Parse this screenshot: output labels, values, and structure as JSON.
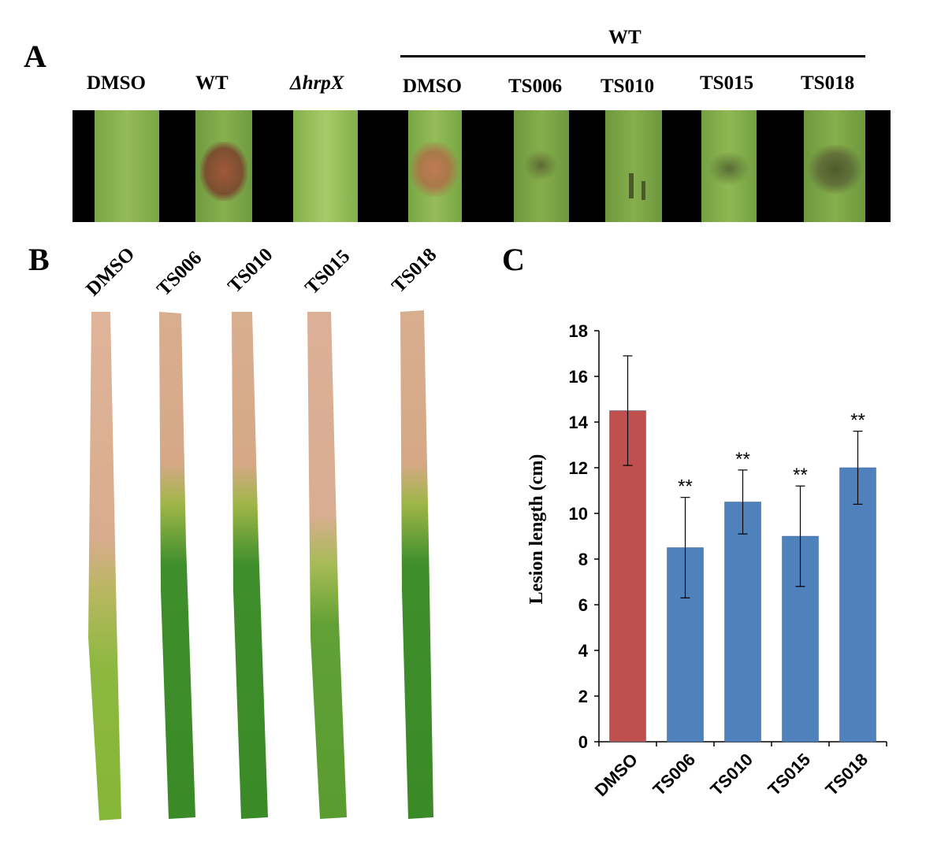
{
  "panels": {
    "a": "A",
    "b": "B",
    "c": "C"
  },
  "panel_a": {
    "group_label": "WT",
    "labels": [
      "DMSO",
      "WT",
      "ΔhrpX",
      "DMSO",
      "TS006",
      "TS010",
      "TS015",
      "TS018"
    ]
  },
  "panel_b": {
    "labels": [
      "DMSO",
      "TS006",
      "TS010",
      "TS015",
      "TS018"
    ]
  },
  "chart_data": {
    "type": "bar",
    "categories": [
      "DMSO",
      "TS006",
      "TS010",
      "TS015",
      "TS018"
    ],
    "values": [
      14.5,
      8.5,
      10.5,
      9.0,
      12.0
    ],
    "errors": [
      2.4,
      2.2,
      1.4,
      2.2,
      1.6
    ],
    "significance": [
      "",
      "**",
      "**",
      "**",
      "**"
    ],
    "bar_colors": [
      "#c0504d",
      "#4f81bd",
      "#4f81bd",
      "#4f81bd",
      "#4f81bd"
    ],
    "ylabel": "Lesion length (cm)",
    "xlabel": "",
    "ylim": [
      0,
      18
    ],
    "yticks": [
      0,
      2,
      4,
      6,
      8,
      10,
      12,
      14,
      16,
      18
    ],
    "grid": false
  }
}
